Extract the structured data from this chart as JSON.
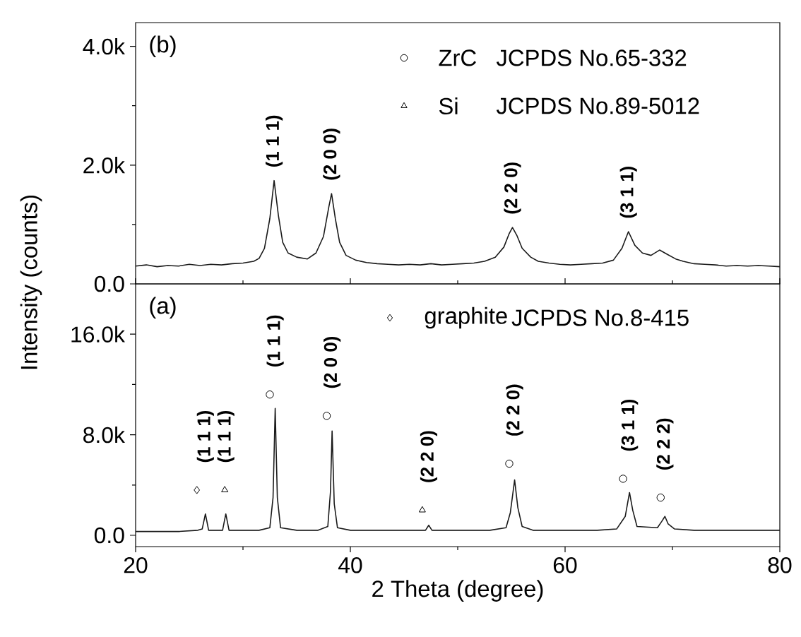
{
  "chart_data": [
    {
      "type": "line",
      "xlim": [
        20,
        80
      ],
      "xticks": [
        20,
        40,
        60,
        80
      ],
      "ylim": [
        0,
        4400
      ],
      "yticks": [
        {
          "value": 0,
          "label": "0.0"
        },
        {
          "value": 2000,
          "label": "2.0k"
        },
        {
          "value": 4000,
          "label": "4.0k"
        }
      ],
      "tick_labels": "y",
      "annotations": [
        "(b)",
        {
          "text": "(1 1 1)",
          "x": 32.9,
          "y": 1740
        },
        {
          "text": "(2 0 0)",
          "x": 38.25,
          "y": 1520
        },
        {
          "text": "(2 2 0)",
          "x": 55.1,
          "y": 950
        },
        {
          "text": "(3 1 1)",
          "x": 65.9,
          "y": 880
        }
      ],
      "series": [
        {
          "color": "#1a1a1a",
          "x": [
            20,
            21,
            22,
            23,
            24,
            25,
            26,
            27,
            28,
            29,
            30,
            31,
            31.5,
            32,
            32.5,
            32.9,
            33.3,
            33.7,
            34.2,
            35,
            36,
            36.8,
            37.5,
            38.0,
            38.25,
            38.6,
            39,
            39.6,
            40.5,
            41.5,
            42.5,
            43.5,
            44.5,
            45.5,
            46.5,
            47.5,
            48.5,
            49.5,
            50.5,
            51.5,
            52.5,
            53.5,
            54.3,
            54.8,
            55.1,
            55.5,
            56,
            56.8,
            57.5,
            58.5,
            59.5,
            60.5,
            61.5,
            62.5,
            63.5,
            64.5,
            65.3,
            65.9,
            66.5,
            67.2,
            68,
            68.8,
            69.5,
            70.3,
            71,
            72,
            73,
            74,
            75,
            76,
            77,
            78,
            79,
            80
          ],
          "values": [
            300,
            320,
            290,
            310,
            300,
            330,
            310,
            330,
            320,
            340,
            350,
            380,
            430,
            600,
            1100,
            1740,
            1150,
            700,
            520,
            450,
            420,
            520,
            800,
            1300,
            1520,
            1100,
            700,
            480,
            400,
            360,
            340,
            330,
            320,
            330,
            320,
            340,
            320,
            330,
            340,
            350,
            380,
            450,
            620,
            850,
            950,
            820,
            600,
            450,
            380,
            350,
            330,
            320,
            330,
            340,
            350,
            400,
            600,
            880,
            650,
            520,
            480,
            570,
            500,
            420,
            380,
            340,
            330,
            320,
            300,
            310,
            300,
            310,
            300,
            290
          ]
        }
      ]
    },
    {
      "type": "line",
      "xlabel": "2 Theta (degree)",
      "ylabel": "Intensity (counts)",
      "xlim": [
        20,
        80
      ],
      "xticks": [
        20,
        40,
        60,
        80
      ],
      "ylim": [
        -900,
        20000
      ],
      "yticks": [
        {
          "value": 0,
          "label": "0.0"
        },
        {
          "value": 8000,
          "label": "8.0k"
        },
        {
          "value": 16000,
          "label": "16.0k"
        }
      ],
      "legend": "top right",
      "annotations": [
        "(a)",
        "JCPDS No.65-332",
        "JCPDS No.89-5012",
        "JCPDS No.8-415",
        {
          "text": "(1 1 1)",
          "x": 26.5,
          "y": 1700
        },
        {
          "text": "(1 1 1)",
          "x": 28.4,
          "y": 1700
        },
        {
          "text": "(1 1 1)",
          "x": 33.0,
          "y": 10100
        },
        {
          "text": "(2 0 0)",
          "x": 38.3,
          "y": 8300
        },
        {
          "text": "(2 2 0)",
          "x": 47.3,
          "y": 800
        },
        {
          "text": "(2 2 0)",
          "x": 55.3,
          "y": 4400
        },
        {
          "text": "(3 1 1)",
          "x": 66.0,
          "y": 3400
        },
        {
          "text": "(2 2 2)",
          "x": 69.3,
          "y": 1500
        }
      ],
      "series": [
        {
          "color": "#1a1a1a",
          "x": [
            20,
            22,
            24,
            25.8,
            26.2,
            26.5,
            26.8,
            27.5,
            28.1,
            28.4,
            28.7,
            30,
            31.5,
            32.5,
            32.8,
            33.0,
            33.2,
            33.5,
            35,
            37,
            37.9,
            38.15,
            38.3,
            38.5,
            38.8,
            40,
            42,
            44,
            46,
            47.0,
            47.3,
            47.6,
            49,
            51,
            53,
            54.5,
            54.9,
            55.3,
            55.6,
            56,
            57,
            59,
            61,
            63,
            64.8,
            65.6,
            66.0,
            66.3,
            66.7,
            68.6,
            69.0,
            69.3,
            69.6,
            70.2,
            72,
            75,
            78,
            80
          ],
          "values": [
            300,
            300,
            300,
            400,
            500,
            1700,
            400,
            400,
            400,
            1700,
            400,
            400,
            400,
            600,
            3000,
            10100,
            3000,
            600,
            400,
            400,
            700,
            3500,
            8300,
            2500,
            600,
            400,
            400,
            400,
            400,
            400,
            800,
            400,
            400,
            400,
            400,
            600,
            1800,
            4400,
            2200,
            700,
            400,
            400,
            400,
            400,
            500,
            1500,
            3400,
            2000,
            700,
            600,
            1100,
            1500,
            900,
            500,
            400,
            400,
            400,
            400
          ]
        },
        {
          "type": "scatter",
          "name": "ZrC",
          "color": "#000000",
          "marker": "circle",
          "x": [
            32.5,
            37.8,
            54.8,
            65.4,
            68.9
          ],
          "values": [
            11200,
            9500,
            5700,
            4500,
            3000
          ]
        },
        {
          "type": "scatter",
          "name": "Si",
          "color": "#000000",
          "marker": "triangle",
          "x": [
            28.3,
            46.7
          ],
          "values": [
            3600,
            2000
          ]
        },
        {
          "type": "scatter",
          "name": "graphite",
          "color": "#000000",
          "marker": "diamond",
          "x": [
            25.7
          ],
          "values": [
            3600
          ]
        }
      ]
    }
  ]
}
